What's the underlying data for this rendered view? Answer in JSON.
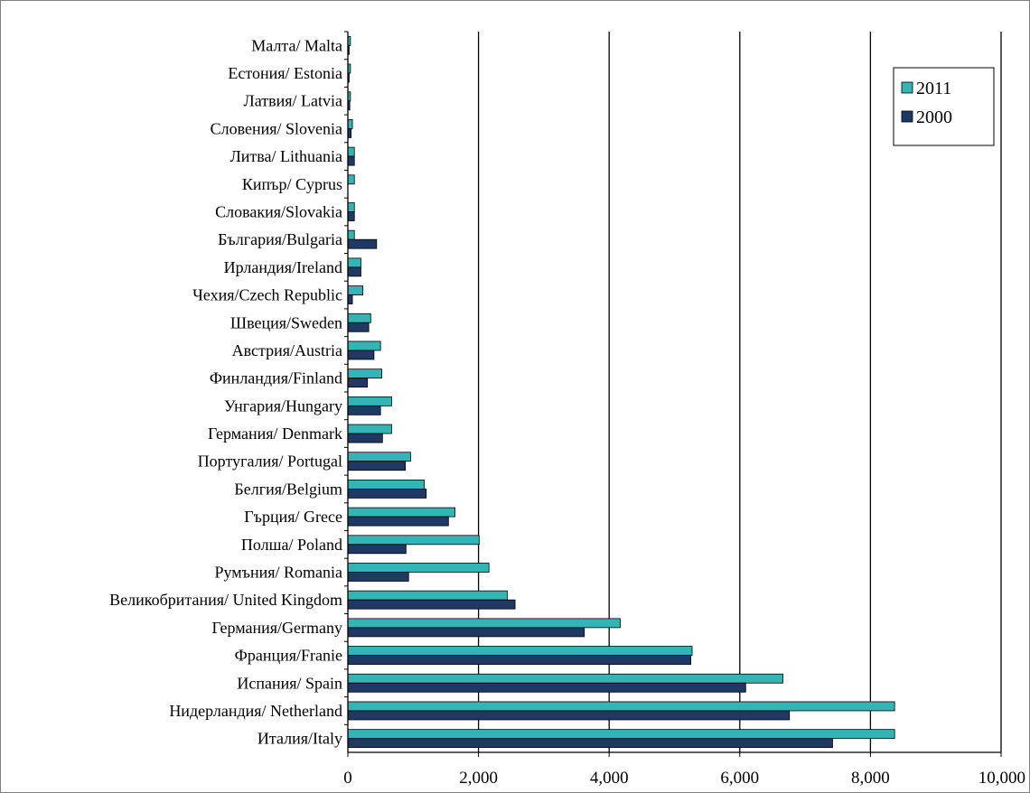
{
  "chart_data": {
    "type": "bar",
    "orientation": "horizontal",
    "categories": [
      "Италия/Italy",
      "Нидерландия/ Netherland",
      "Испания/ Spain",
      "Франция/Franie",
      "Германия/Germany",
      "Великобритания/ United Kingdom",
      "Румъния/ Romania",
      "Полша/ Poland",
      "Гърция/ Grece",
      "Белгия/Belgium",
      "Португалия/ Portugal",
      "Германия/ Denmark",
      "Унгария/Hungary",
      "Финландия/Finland",
      "Австрия/Austria",
      "Швеция/Sweden",
      "Чехия/Czech Republic",
      "Ирландия/Ireland",
      "България/Bulgaria",
      "Словакия/Slovakia",
      "Кипър/ Cyprus",
      "Литва/ Lithuania",
      "Словения/ Slovenia",
      "Латвия/ Latvia",
      "Естония/ Estonia",
      "Малта/ Malta"
    ],
    "series": [
      {
        "name": "2011",
        "color": "#33b5b5",
        "values": [
          8370,
          8370,
          6660,
          5270,
          4170,
          2440,
          2160,
          2010,
          1640,
          1170,
          960,
          670,
          670,
          520,
          500,
          350,
          230,
          200,
          100,
          100,
          100,
          100,
          70,
          40,
          40,
          40
        ]
      },
      {
        "name": "2000",
        "color": "#1f3864",
        "values": [
          7420,
          6760,
          6090,
          5250,
          3620,
          2560,
          930,
          890,
          1540,
          1200,
          880,
          530,
          500,
          300,
          400,
          320,
          70,
          200,
          440,
          100,
          0,
          100,
          50,
          30,
          20,
          20
        ]
      }
    ],
    "xlim": [
      0,
      10000
    ],
    "xticks": [
      "0",
      "2,000",
      "4,000",
      "6,000",
      "8,000",
      "10,000"
    ],
    "xtick_values": [
      0,
      2000,
      4000,
      6000,
      8000,
      10000
    ],
    "gridlines": "vertical",
    "legend_position": "top-right",
    "title": "",
    "xlabel": "",
    "ylabel": ""
  }
}
